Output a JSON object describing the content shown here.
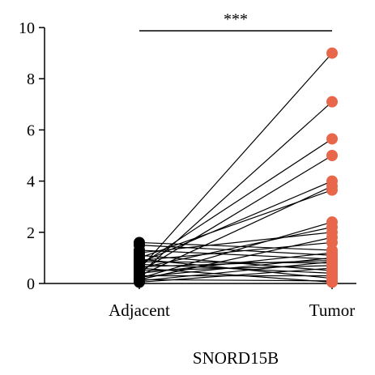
{
  "chart_data": {
    "type": "scatter",
    "categories": [
      "Adjacent",
      "Tumor"
    ],
    "xlabel": "SNORD15B",
    "ylabel": "",
    "ylim": [
      0,
      10
    ],
    "yticks": [
      "0",
      "2",
      "4",
      "6",
      "8",
      "10"
    ],
    "significance": "***",
    "grid": false,
    "colors": {
      "adjacent": "#000000",
      "tumor": "#e8664a",
      "line": "#000000"
    },
    "pairs": [
      {
        "adjacent": 0.55,
        "tumor": 9.0
      },
      {
        "adjacent": 0.35,
        "tumor": 7.1
      },
      {
        "adjacent": 0.7,
        "tumor": 5.65
      },
      {
        "adjacent": 0.45,
        "tumor": 5.0
      },
      {
        "adjacent": 0.8,
        "tumor": 4.0
      },
      {
        "adjacent": 0.3,
        "tumor": 3.8
      },
      {
        "adjacent": 1.0,
        "tumor": 3.65
      },
      {
        "adjacent": 0.2,
        "tumor": 2.4
      },
      {
        "adjacent": 0.6,
        "tumor": 2.2
      },
      {
        "adjacent": 1.2,
        "tumor": 2.0
      },
      {
        "adjacent": 0.15,
        "tumor": 1.8
      },
      {
        "adjacent": 0.9,
        "tumor": 1.6
      },
      {
        "adjacent": 1.6,
        "tumor": 1.3
      },
      {
        "adjacent": 0.4,
        "tumor": 1.2
      },
      {
        "adjacent": 1.5,
        "tumor": 1.1
      },
      {
        "adjacent": 0.25,
        "tumor": 1.0
      },
      {
        "adjacent": 1.3,
        "tumor": 0.95
      },
      {
        "adjacent": 0.65,
        "tumor": 0.9
      },
      {
        "adjacent": 0.1,
        "tumor": 0.85
      },
      {
        "adjacent": 0.85,
        "tumor": 0.8
      },
      {
        "adjacent": 0.5,
        "tumor": 0.7
      },
      {
        "adjacent": 0.05,
        "tumor": 0.6
      },
      {
        "adjacent": 1.1,
        "tumor": 0.5
      },
      {
        "adjacent": 0.75,
        "tumor": 0.4
      },
      {
        "adjacent": 0.3,
        "tumor": 0.3
      },
      {
        "adjacent": 0.95,
        "tumor": 0.2
      },
      {
        "adjacent": 0.15,
        "tumor": 0.1
      },
      {
        "adjacent": 0.6,
        "tumor": 0.05
      }
    ]
  }
}
